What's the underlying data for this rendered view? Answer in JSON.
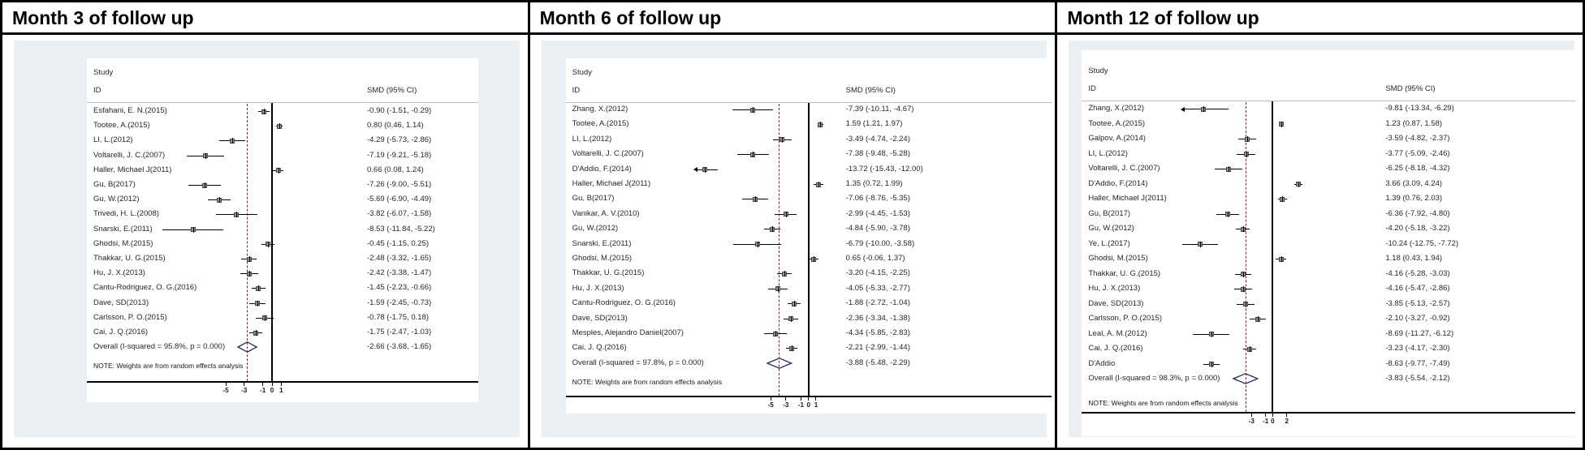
{
  "plot_header": {
    "study": "Study",
    "id": "ID",
    "smd": "SMD (95% CI)"
  },
  "note": "NOTE: Weights are from random effects analysis",
  "colors": {
    "panel_bg": "#e9eff3",
    "dashed_overall_line": "#7e2a2a",
    "diamond_outline": "#26265e",
    "marker_fill": "#8f8f8f",
    "axis": "#000000",
    "text": "#26262e"
  },
  "chart_data": {
    "type": "forest",
    "panels": [
      {
        "title": "Month 3 of follow up",
        "axis_ticks": [
          -5,
          -3,
          -1,
          0,
          1
        ],
        "studies": [
          {
            "label": "Esfahani, E. N.(2015)",
            "smd": -0.9,
            "lo": -1.51,
            "hi": -0.29,
            "ci_text": "-0.90 (-1.51, -0.29)"
          },
          {
            "label": "Tootee, A.(2015)",
            "smd": 0.8,
            "lo": 0.46,
            "hi": 1.14,
            "ci_text": "0.80 (0.46, 1.14)"
          },
          {
            "label": "LI, L.(2012)",
            "smd": -4.29,
            "lo": -5.73,
            "hi": -2.86,
            "ci_text": "-4.29 (-5.73, -2.86)"
          },
          {
            "label": "Voltarelli, J. C.(2007)",
            "smd": -7.19,
            "lo": -9.21,
            "hi": -5.18,
            "ci_text": "-7.19 (-9.21, -5.18)"
          },
          {
            "label": "Haller, Michael J(2011)",
            "smd": 0.66,
            "lo": 0.08,
            "hi": 1.24,
            "ci_text": "0.66 (0.08, 1.24)"
          },
          {
            "label": "Gu, B(2017)",
            "smd": -7.26,
            "lo": -9.0,
            "hi": -5.51,
            "ci_text": "-7.26 (-9.00, -5.51)"
          },
          {
            "label": "Gu, W.(2012)",
            "smd": -5.69,
            "lo": -6.9,
            "hi": -4.49,
            "ci_text": "-5.69 (-6.90, -4.49)"
          },
          {
            "label": "Trivedi, H. L.(2008)",
            "smd": -3.82,
            "lo": -6.07,
            "hi": -1.58,
            "ci_text": "-3.82 (-6.07, -1.58)"
          },
          {
            "label": "Snarski, E.(2011)",
            "smd": -8.53,
            "lo": -11.84,
            "hi": -5.22,
            "ci_text": "-8.53 (-11.84, -5.22)"
          },
          {
            "label": "Ghodsi, M.(2015)",
            "smd": -0.45,
            "lo": -1.15,
            "hi": 0.25,
            "ci_text": "-0.45 (-1.15, 0.25)"
          },
          {
            "label": "Thakkar, U. G.(2015)",
            "smd": -2.48,
            "lo": -3.32,
            "hi": -1.65,
            "ci_text": "-2.48 (-3.32, -1.65)"
          },
          {
            "label": "Hu, J. X.(2013)",
            "smd": -2.42,
            "lo": -3.38,
            "hi": -1.47,
            "ci_text": "-2.42 (-3.38, -1.47)"
          },
          {
            "label": "Cantu-Rodriguez, O. G.(2016)",
            "smd": -1.45,
            "lo": -2.23,
            "hi": -0.66,
            "ci_text": "-1.45 (-2.23, -0.66)"
          },
          {
            "label": "Dave, SD(2013)",
            "smd": -1.59,
            "lo": -2.45,
            "hi": -0.73,
            "ci_text": "-1.59 (-2.45, -0.73)"
          },
          {
            "label": "Carlsson, P. O.(2015)",
            "smd": -0.78,
            "lo": -1.75,
            "hi": 0.18,
            "ci_text": "-0.78 (-1.75, 0.18)"
          },
          {
            "label": "Cai, J. Q.(2016)",
            "smd": -1.75,
            "lo": -2.47,
            "hi": -1.03,
            "ci_text": "-1.75 (-2.47, -1.03)"
          }
        ],
        "overall": {
          "label": "Overall  (I-squared = 95.8%, p = 0.000)",
          "smd": -2.66,
          "lo": -3.68,
          "hi": -1.65,
          "ci_text": "-2.66 (-3.68, -1.65)"
        }
      },
      {
        "title": "Month 6 of follow up",
        "axis_ticks": [
          -5,
          -3,
          -1,
          0,
          1
        ],
        "studies": [
          {
            "label": "Zhang, X.(2012)",
            "smd": -7.39,
            "lo": -10.11,
            "hi": -4.67,
            "ci_text": "-7.39 (-10.11, -4.67)"
          },
          {
            "label": "Tootee, A.(2015)",
            "smd": 1.59,
            "lo": 1.21,
            "hi": 1.97,
            "ci_text": "1.59 (1.21, 1.97)"
          },
          {
            "label": "LI, L.(2012)",
            "smd": -3.49,
            "lo": -4.74,
            "hi": -2.24,
            "ci_text": "-3.49 (-4.74, -2.24)"
          },
          {
            "label": "Voltarelli, J. C.(2007)",
            "smd": -7.38,
            "lo": -9.48,
            "hi": -5.28,
            "ci_text": "-7.38 (-9.48, -5.28)"
          },
          {
            "label": "D'Addio, F.(2014)",
            "smd": -13.72,
            "lo": -15.43,
            "hi": -12.0,
            "ci_text": "-13.72 (-15.43, -12.00)"
          },
          {
            "label": "Haller, Michael J(2011)",
            "smd": 1.35,
            "lo": 0.72,
            "hi": 1.99,
            "ci_text": "1.35 (0.72, 1.99)"
          },
          {
            "label": "Gu, B(2017)",
            "smd": -7.06,
            "lo": -8.76,
            "hi": -5.35,
            "ci_text": "-7.06 (-8.76, -5.35)"
          },
          {
            "label": "Vanikar, A. V.(2010)",
            "smd": -2.99,
            "lo": -4.45,
            "hi": -1.53,
            "ci_text": "-2.99 (-4.45, -1.53)"
          },
          {
            "label": "Gu, W.(2012)",
            "smd": -4.84,
            "lo": -5.9,
            "hi": -3.78,
            "ci_text": "-4.84 (-5.90, -3.78)"
          },
          {
            "label": "Snarski, E.(2011)",
            "smd": -6.79,
            "lo": -10.0,
            "hi": -3.58,
            "ci_text": "-6.79 (-10.00, -3.58)"
          },
          {
            "label": "Ghodsi, M.(2015)",
            "smd": 0.65,
            "lo": -0.06,
            "hi": 1.37,
            "ci_text": "0.65 (-0.06, 1.37)"
          },
          {
            "label": "Thakkar, U. G.(2015)",
            "smd": -3.2,
            "lo": -4.15,
            "hi": -2.25,
            "ci_text": "-3.20 (-4.15, -2.25)"
          },
          {
            "label": "Hu, J. X.(2013)",
            "smd": -4.05,
            "lo": -5.33,
            "hi": -2.77,
            "ci_text": "-4.05 (-5.33, -2.77)"
          },
          {
            "label": "Cantu-Rodriguez, O. G.(2016)",
            "smd": -1.88,
            "lo": -2.72,
            "hi": -1.04,
            "ci_text": "-1.88 (-2.72, -1.04)"
          },
          {
            "label": "Dave, SD(2013)",
            "smd": -2.36,
            "lo": -3.34,
            "hi": -1.38,
            "ci_text": "-2.36 (-3.34, -1.38)"
          },
          {
            "label": "Mesples, Alejandro Daniel(2007)",
            "smd": -4.34,
            "lo": -5.85,
            "hi": -2.83,
            "ci_text": "-4.34 (-5.85, -2.83)"
          },
          {
            "label": "Cai, J. Q.(2016)",
            "smd": -2.21,
            "lo": -2.99,
            "hi": -1.44,
            "ci_text": "-2.21 (-2.99, -1.44)"
          }
        ],
        "overall": {
          "label": "Overall  (I-squared = 97.8%, p = 0.000)",
          "smd": -3.88,
          "lo": -5.48,
          "hi": -2.29,
          "ci_text": "-3.88 (-5.48, -2.29)"
        }
      },
      {
        "title": "Month 12 of follow up",
        "axis_ticks": [
          -3,
          -1,
          0,
          2
        ],
        "studies": [
          {
            "label": "Zhang, X.(2012)",
            "smd": -9.81,
            "lo": -13.34,
            "hi": -6.29,
            "ci_text": "-9.81 (-13.34, -6.29)"
          },
          {
            "label": "Tootee, A.(2015)",
            "smd": 1.23,
            "lo": 0.87,
            "hi": 1.58,
            "ci_text": "1.23 (0.87, 1.58)"
          },
          {
            "label": "Galpov, A.(2014)",
            "smd": -3.59,
            "lo": -4.82,
            "hi": -2.37,
            "ci_text": "-3.59 (-4.82, -2.37)"
          },
          {
            "label": "LI, L.(2012)",
            "smd": -3.77,
            "lo": -5.09,
            "hi": -2.46,
            "ci_text": "-3.77 (-5.09, -2.46)"
          },
          {
            "label": "Voltarelli, J. C.(2007)",
            "smd": -6.25,
            "lo": -8.18,
            "hi": -4.32,
            "ci_text": "-6.25 (-8.18, -4.32)"
          },
          {
            "label": "D'Addio, F.(2014)",
            "smd": 3.66,
            "lo": 3.09,
            "hi": 4.24,
            "ci_text": "3.66 (3.09, 4.24)"
          },
          {
            "label": "Haller, Michael J(2011)",
            "smd": 1.39,
            "lo": 0.76,
            "hi": 2.03,
            "ci_text": "1.39 (0.76, 2.03)"
          },
          {
            "label": "Gu, B(2017)",
            "smd": -6.36,
            "lo": -7.92,
            "hi": -4.8,
            "ci_text": "-6.36 (-7.92, -4.80)"
          },
          {
            "label": "Gu, W.(2012)",
            "smd": -4.2,
            "lo": -5.18,
            "hi": -3.22,
            "ci_text": "-4.20 (-5.18, -3.22)"
          },
          {
            "label": "Ye, L.(2017)",
            "smd": -10.24,
            "lo": -12.75,
            "hi": -7.72,
            "ci_text": "-10.24 (-12.75, -7.72)"
          },
          {
            "label": "Ghodsi, M.(2015)",
            "smd": 1.18,
            "lo": 0.43,
            "hi": 1.94,
            "ci_text": "1.18 (0.43, 1.94)"
          },
          {
            "label": "Thakkar, U. G.(2015)",
            "smd": -4.16,
            "lo": -5.28,
            "hi": -3.03,
            "ci_text": "-4.16 (-5.28, -3.03)"
          },
          {
            "label": "Hu, J. X.(2013)",
            "smd": -4.16,
            "lo": -5.47,
            "hi": -2.86,
            "ci_text": "-4.16 (-5.47, -2.86)"
          },
          {
            "label": "Dave, SD(2013)",
            "smd": -3.85,
            "lo": -5.13,
            "hi": -2.57,
            "ci_text": "-3.85 (-5.13, -2.57)"
          },
          {
            "label": "Carlsson, P. O.(2015)",
            "smd": -2.1,
            "lo": -3.27,
            "hi": -0.92,
            "ci_text": "-2.10 (-3.27, -0.92)"
          },
          {
            "label": "Leal, A. M.(2012)",
            "smd": -8.69,
            "lo": -11.27,
            "hi": -6.12,
            "ci_text": "-8.69 (-11.27, -6.12)"
          },
          {
            "label": "Cai, J. Q.(2016)",
            "smd": -3.23,
            "lo": -4.17,
            "hi": -2.3,
            "ci_text": "-3.23 (-4.17, -2.30)"
          },
          {
            "label": "D'Addio",
            "smd": -8.63,
            "lo": -9.77,
            "hi": -7.49,
            "ci_text": "-8.63 (-9.77, -7.49)"
          }
        ],
        "overall": {
          "label": "Overall  (I-squared = 98.3%, p = 0.000)",
          "smd": -3.83,
          "lo": -5.54,
          "hi": -2.12,
          "ci_text": "-3.83 (-5.54, -2.12)"
        }
      }
    ]
  }
}
